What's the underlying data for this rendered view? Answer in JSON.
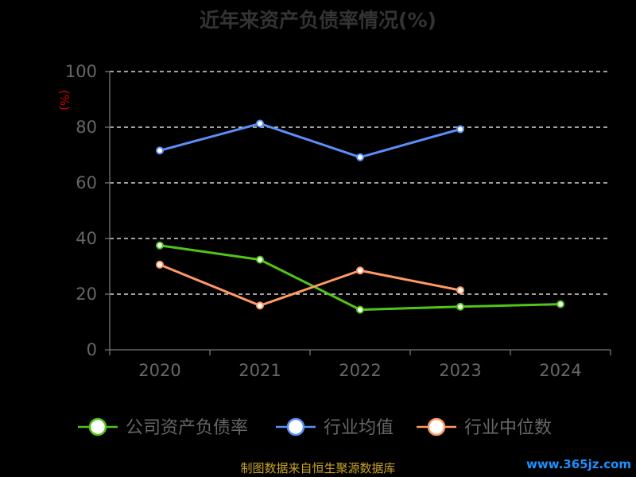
{
  "chart_data": {
    "type": "line",
    "title": "近年来资产负债率情况(%)",
    "ylabel": "(%)",
    "xlabel": "",
    "categories": [
      "2020",
      "2021",
      "2022",
      "2023",
      "2024"
    ],
    "ylim": [
      0,
      100
    ],
    "yticks": [
      0,
      20,
      40,
      60,
      80,
      100
    ],
    "grid": true,
    "legend_position": "bottom",
    "series": [
      {
        "name": "公司资产负债率",
        "color": "#52c41a",
        "values": [
          37.5,
          32.4,
          14.4,
          15.5,
          16.4
        ]
      },
      {
        "name": "行业均值",
        "color": "#5b8ff9",
        "values": [
          71.6,
          81.3,
          69.2,
          79.3,
          null
        ]
      },
      {
        "name": "行业中位数",
        "color": "#ff9966",
        "values": [
          30.6,
          15.9,
          28.5,
          21.4,
          null
        ]
      }
    ]
  },
  "footer": "制图数据来自恒生聚源数据库",
  "watermark": "www.365jz.com",
  "colors": {
    "axis": "#666666",
    "grid": "#ffffff",
    "ylabel": "#cc0000",
    "title": "#333333"
  }
}
